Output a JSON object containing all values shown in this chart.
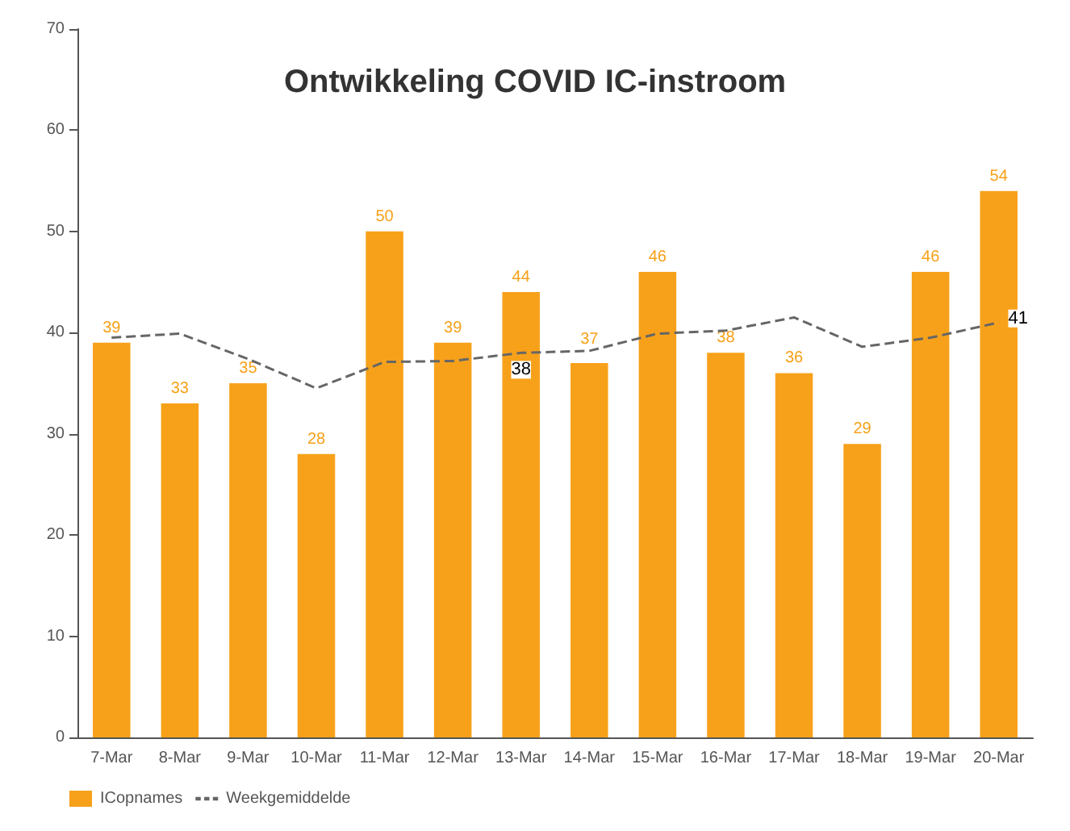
{
  "chart_data": {
    "type": "bar",
    "title": "Ontwikkeling COVID IC-instroom",
    "categories": [
      "7-Mar",
      "8-Mar",
      "9-Mar",
      "10-Mar",
      "11-Mar",
      "12-Mar",
      "13-Mar",
      "14-Mar",
      "15-Mar",
      "16-Mar",
      "17-Mar",
      "18-Mar",
      "19-Mar",
      "20-Mar"
    ],
    "series": [
      {
        "name": "ICopnames",
        "type": "bar",
        "color": "#f7a11a",
        "values": [
          39,
          33,
          35,
          28,
          50,
          39,
          44,
          37,
          46,
          38,
          36,
          29,
          46,
          54
        ],
        "value_labels": [
          "39",
          "33",
          "35",
          "28",
          "50",
          "39",
          "44",
          "37",
          "46",
          "38",
          "36",
          "29",
          "46",
          "54"
        ]
      },
      {
        "name": "Weekgemiddelde",
        "type": "line",
        "color": "#666666",
        "line_style": "dashed",
        "marker": "none",
        "values": [
          39.5,
          39.9,
          37.4,
          34.5,
          37.1,
          37.2,
          38,
          38.2,
          39.9,
          40.2,
          41.5,
          38.6,
          39.5,
          41
        ],
        "value_labels": [
          null,
          null,
          null,
          null,
          null,
          null,
          "38",
          null,
          null,
          null,
          null,
          null,
          null,
          "41"
        ]
      }
    ],
    "ylim": [
      0,
      70
    ],
    "yticks": [
      0,
      10,
      20,
      30,
      40,
      50,
      60,
      70
    ],
    "grid": false,
    "legend": "bottom left"
  }
}
